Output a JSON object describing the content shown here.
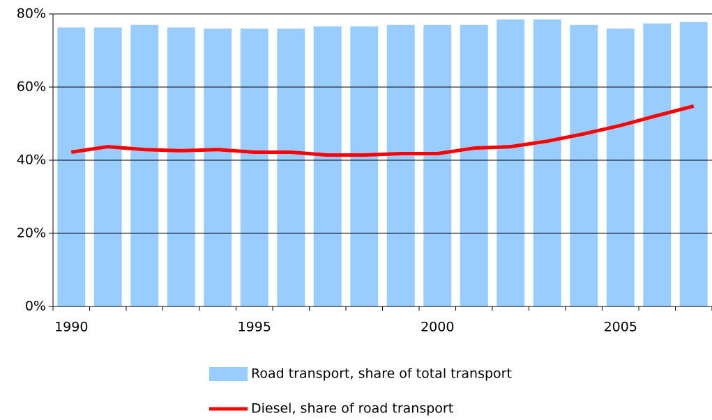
{
  "chart_data": {
    "type": "bar",
    "categories": [
      "1990",
      null,
      null,
      null,
      null,
      "1995",
      null,
      null,
      null,
      null,
      "2000",
      null,
      null,
      null,
      null,
      "2005",
      null,
      null
    ],
    "series": [
      {
        "name": "Road transport, share of total transport",
        "type": "bar",
        "color": "#99ccff",
        "values": [
          76.3,
          76.3,
          77,
          76.3,
          76,
          76,
          76,
          76.6,
          76.6,
          77,
          77,
          77,
          78.5,
          78.5,
          77,
          76,
          77.4,
          77.8
        ]
      },
      {
        "name": "Diesel, share of road transport",
        "type": "line",
        "color": "#ff0000",
        "values": [
          42.2,
          43.7,
          42.9,
          42.6,
          42.9,
          42.2,
          42.2,
          41.4,
          41.4,
          41.8,
          41.8,
          43.3,
          43.7,
          45.2,
          47.2,
          49.5,
          52.2,
          54.8
        ]
      }
    ],
    "ylim": [
      0,
      80
    ],
    "yticks": [
      {
        "value": 0,
        "label": "0%"
      },
      {
        "value": 20,
        "label": "20%"
      },
      {
        "value": 40,
        "label": "40%"
      },
      {
        "value": 60,
        "label": "60%"
      },
      {
        "value": 80,
        "label": "80%"
      }
    ],
    "grid": true
  }
}
